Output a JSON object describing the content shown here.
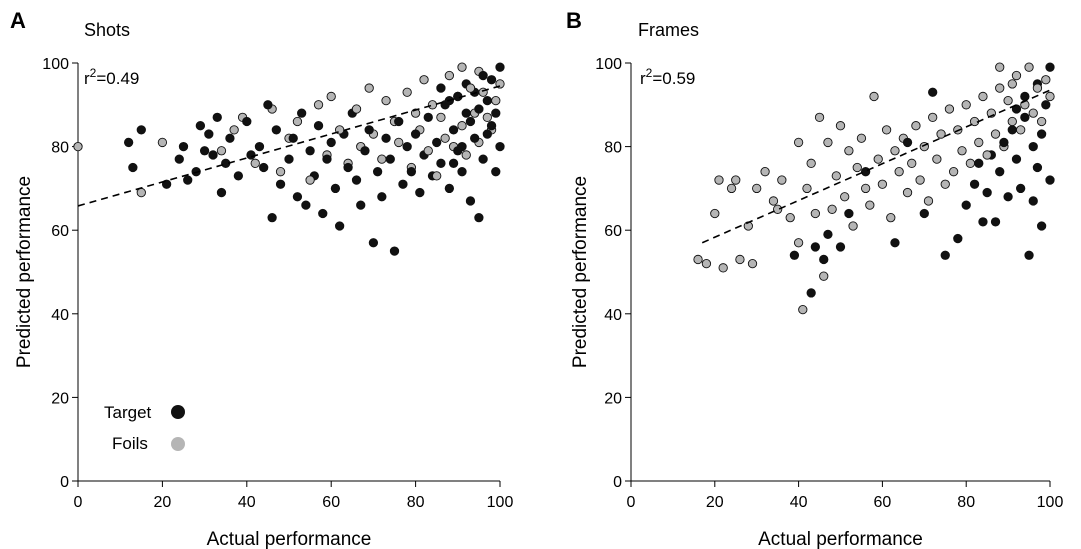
{
  "chart_data": [
    {
      "panel": "A",
      "title": "Shots",
      "type": "scatter",
      "xlabel": "Actual performance",
      "ylabel": "Predicted performance",
      "xlim": [
        0,
        100
      ],
      "ylim": [
        0,
        100
      ],
      "xticks": [
        0,
        20,
        40,
        60,
        80,
        100
      ],
      "yticks": [
        0,
        20,
        40,
        60,
        80,
        100
      ],
      "r2_prefix": "r",
      "r2_exp": "2",
      "r2_value": "=0.49",
      "regression": {
        "x": [
          0,
          100
        ],
        "y": [
          65.8,
          94.5
        ],
        "style": "dashed"
      },
      "legend": {
        "position": "bottom-left",
        "items": [
          {
            "label": "Target",
            "color": "#111111"
          },
          {
            "label": "Foils",
            "color": "#b5b5b5"
          }
        ]
      },
      "series": [
        {
          "name": "Target",
          "color": "#111111",
          "points": [
            [
              12,
              81
            ],
            [
              13,
              75
            ],
            [
              15,
              84
            ],
            [
              21,
              71
            ],
            [
              24,
              77
            ],
            [
              25,
              80
            ],
            [
              26,
              72
            ],
            [
              28,
              74
            ],
            [
              29,
              85
            ],
            [
              30,
              79
            ],
            [
              31,
              83
            ],
            [
              32,
              78
            ],
            [
              33,
              87
            ],
            [
              34,
              69
            ],
            [
              35,
              76
            ],
            [
              36,
              82
            ],
            [
              38,
              73
            ],
            [
              40,
              86
            ],
            [
              41,
              78
            ],
            [
              43,
              80
            ],
            [
              44,
              75
            ],
            [
              45,
              90
            ],
            [
              46,
              63
            ],
            [
              47,
              84
            ],
            [
              48,
              71
            ],
            [
              50,
              77
            ],
            [
              51,
              82
            ],
            [
              52,
              68
            ],
            [
              53,
              88
            ],
            [
              54,
              66
            ],
            [
              55,
              79
            ],
            [
              56,
              73
            ],
            [
              57,
              85
            ],
            [
              58,
              64
            ],
            [
              59,
              77
            ],
            [
              60,
              81
            ],
            [
              61,
              70
            ],
            [
              62,
              61
            ],
            [
              63,
              83
            ],
            [
              64,
              75
            ],
            [
              65,
              88
            ],
            [
              66,
              72
            ],
            [
              67,
              66
            ],
            [
              68,
              79
            ],
            [
              69,
              84
            ],
            [
              70,
              57
            ],
            [
              71,
              74
            ],
            [
              72,
              68
            ],
            [
              73,
              82
            ],
            [
              74,
              77
            ],
            [
              75,
              55
            ],
            [
              76,
              86
            ],
            [
              77,
              71
            ],
            [
              78,
              80
            ],
            [
              79,
              74
            ],
            [
              80,
              83
            ],
            [
              81,
              69
            ],
            [
              82,
              78
            ],
            [
              83,
              87
            ],
            [
              84,
              73
            ],
            [
              85,
              81
            ],
            [
              86,
              76
            ],
            [
              87,
              90
            ],
            [
              88,
              70
            ],
            [
              89,
              84
            ],
            [
              90,
              79
            ],
            [
              91,
              74
            ],
            [
              92,
              88
            ],
            [
              93,
              67
            ],
            [
              94,
              82
            ],
            [
              95,
              63
            ],
            [
              96,
              77
            ],
            [
              97,
              91
            ],
            [
              98,
              85
            ],
            [
              99,
              74
            ],
            [
              100,
              80
            ],
            [
              92,
              95
            ],
            [
              94,
              93
            ],
            [
              96,
              97
            ],
            [
              98,
              96
            ],
            [
              100,
              99
            ],
            [
              90,
              92
            ],
            [
              88,
              91
            ],
            [
              86,
              94
            ],
            [
              93,
              86
            ],
            [
              95,
              89
            ],
            [
              97,
              83
            ],
            [
              99,
              88
            ],
            [
              91,
              80
            ],
            [
              89,
              76
            ]
          ]
        },
        {
          "name": "Foils",
          "color": "#b5b5b5",
          "points": [
            [
              0,
              80
            ],
            [
              15,
              69
            ],
            [
              20,
              81
            ],
            [
              34,
              79
            ],
            [
              37,
              84
            ],
            [
              39,
              87
            ],
            [
              42,
              76
            ],
            [
              46,
              89
            ],
            [
              48,
              74
            ],
            [
              50,
              82
            ],
            [
              52,
              86
            ],
            [
              55,
              72
            ],
            [
              57,
              90
            ],
            [
              59,
              78
            ],
            [
              60,
              92
            ],
            [
              62,
              84
            ],
            [
              64,
              76
            ],
            [
              66,
              89
            ],
            [
              67,
              80
            ],
            [
              69,
              94
            ],
            [
              70,
              83
            ],
            [
              72,
              77
            ],
            [
              73,
              91
            ],
            [
              75,
              86
            ],
            [
              76,
              81
            ],
            [
              78,
              93
            ],
            [
              79,
              75
            ],
            [
              80,
              88
            ],
            [
              81,
              84
            ],
            [
              82,
              96
            ],
            [
              83,
              79
            ],
            [
              84,
              90
            ],
            [
              85,
              73
            ],
            [
              86,
              87
            ],
            [
              87,
              82
            ],
            [
              88,
              97
            ],
            [
              89,
              80
            ],
            [
              90,
              92
            ],
            [
              91,
              85
            ],
            [
              92,
              78
            ],
            [
              93,
              94
            ],
            [
              94,
              88
            ],
            [
              95,
              81
            ],
            [
              96,
              93
            ],
            [
              97,
              87
            ],
            [
              98,
              84
            ],
            [
              99,
              91
            ],
            [
              100,
              95
            ],
            [
              91,
              99
            ],
            [
              95,
              98
            ]
          ]
        }
      ]
    },
    {
      "panel": "B",
      "title": "Frames",
      "type": "scatter",
      "xlabel": "Actual performance",
      "ylabel": "Predicted performance",
      "xlim": [
        0,
        100
      ],
      "ylim": [
        0,
        100
      ],
      "xticks": [
        0,
        20,
        40,
        60,
        80,
        100
      ],
      "yticks": [
        0,
        20,
        40,
        60,
        80,
        100
      ],
      "r2_prefix": "r",
      "r2_exp": "2",
      "r2_value": "=0.59",
      "regression": {
        "x": [
          17,
          100
        ],
        "y": [
          57,
          93.5
        ],
        "style": "dashed"
      },
      "series": [
        {
          "name": "Target",
          "color": "#111111",
          "points": [
            [
              39,
              54
            ],
            [
              43,
              45
            ],
            [
              44,
              56
            ],
            [
              46,
              53
            ],
            [
              47,
              59
            ],
            [
              50,
              56
            ],
            [
              52,
              64
            ],
            [
              56,
              74
            ],
            [
              63,
              57
            ],
            [
              66,
              81
            ],
            [
              70,
              64
            ],
            [
              72,
              93
            ],
            [
              75,
              54
            ],
            [
              78,
              58
            ],
            [
              80,
              66
            ],
            [
              82,
              71
            ],
            [
              84,
              62
            ],
            [
              86,
              78
            ],
            [
              87,
              62
            ],
            [
              88,
              74
            ],
            [
              90,
              68
            ],
            [
              91,
              84
            ],
            [
              92,
              77
            ],
            [
              93,
              70
            ],
            [
              94,
              87
            ],
            [
              95,
              54
            ],
            [
              96,
              80
            ],
            [
              97,
              75
            ],
            [
              98,
              61
            ],
            [
              99,
              90
            ],
            [
              100,
              99
            ],
            [
              100,
              72
            ],
            [
              97,
              95
            ],
            [
              94,
              92
            ],
            [
              92,
              89
            ],
            [
              98,
              83
            ],
            [
              96,
              67
            ],
            [
              89,
              81
            ],
            [
              85,
              69
            ],
            [
              83,
              76
            ]
          ]
        },
        {
          "name": "Foils",
          "color": "#b5b5b5",
          "points": [
            [
              16,
              53
            ],
            [
              18,
              52
            ],
            [
              20,
              64
            ],
            [
              21,
              72
            ],
            [
              22,
              51
            ],
            [
              24,
              70
            ],
            [
              25,
              72
            ],
            [
              26,
              53
            ],
            [
              28,
              61
            ],
            [
              29,
              52
            ],
            [
              30,
              70
            ],
            [
              32,
              74
            ],
            [
              34,
              67
            ],
            [
              35,
              65
            ],
            [
              36,
              72
            ],
            [
              38,
              63
            ],
            [
              40,
              57
            ],
            [
              40,
              81
            ],
            [
              41,
              41
            ],
            [
              42,
              70
            ],
            [
              43,
              76
            ],
            [
              44,
              64
            ],
            [
              45,
              87
            ],
            [
              46,
              49
            ],
            [
              47,
              81
            ],
            [
              48,
              65
            ],
            [
              49,
              73
            ],
            [
              50,
              85
            ],
            [
              51,
              68
            ],
            [
              52,
              79
            ],
            [
              53,
              61
            ],
            [
              54,
              75
            ],
            [
              55,
              82
            ],
            [
              56,
              70
            ],
            [
              57,
              66
            ],
            [
              58,
              92
            ],
            [
              59,
              77
            ],
            [
              60,
              71
            ],
            [
              61,
              84
            ],
            [
              62,
              63
            ],
            [
              63,
              79
            ],
            [
              64,
              74
            ],
            [
              65,
              82
            ],
            [
              66,
              69
            ],
            [
              67,
              76
            ],
            [
              68,
              85
            ],
            [
              69,
              72
            ],
            [
              70,
              80
            ],
            [
              71,
              67
            ],
            [
              72,
              87
            ],
            [
              73,
              77
            ],
            [
              74,
              83
            ],
            [
              75,
              71
            ],
            [
              76,
              89
            ],
            [
              77,
              74
            ],
            [
              78,
              84
            ],
            [
              79,
              79
            ],
            [
              80,
              90
            ],
            [
              81,
              76
            ],
            [
              82,
              86
            ],
            [
              83,
              81
            ],
            [
              84,
              92
            ],
            [
              85,
              78
            ],
            [
              86,
              88
            ],
            [
              87,
              83
            ],
            [
              88,
              94
            ],
            [
              89,
              80
            ],
            [
              90,
              91
            ],
            [
              91,
              86
            ],
            [
              92,
              97
            ],
            [
              93,
              84
            ],
            [
              94,
              90
            ],
            [
              95,
              99
            ],
            [
              96,
              88
            ],
            [
              97,
              94
            ],
            [
              98,
              86
            ],
            [
              99,
              96
            ],
            [
              100,
              92
            ],
            [
              88,
              99
            ],
            [
              91,
              95
            ]
          ]
        }
      ]
    }
  ]
}
